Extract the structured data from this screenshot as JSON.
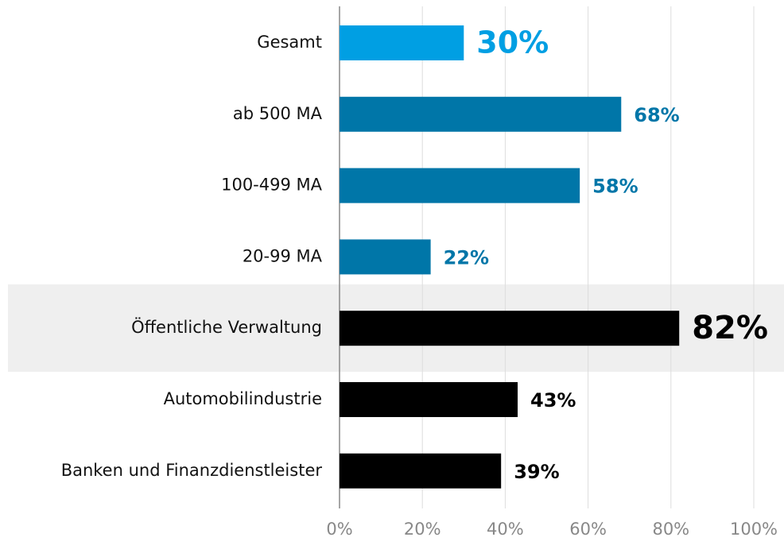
{
  "chart_data": {
    "type": "hbar",
    "categories": [
      "Gesamt",
      "ab 500 MA",
      "100-499 MA",
      "20-99 MA",
      "Öffentliche Verwaltung",
      "Automobilindustrie",
      "Banken und Finanzdienstleister"
    ],
    "values": [
      30,
      68,
      58,
      22,
      82,
      43,
      39
    ],
    "value_labels": [
      "30%",
      "68%",
      "58%",
      "22%",
      "82%",
      "43%",
      "39%"
    ],
    "colors": [
      "#009fe3",
      "#0076a8",
      "#0076a8",
      "#0076a8",
      "#000000",
      "#000000",
      "#000000"
    ],
    "xlim": [
      0,
      100
    ],
    "xticks": [
      {
        "value": 0,
        "label": "0%"
      },
      {
        "value": 20,
        "label": "20%"
      },
      {
        "value": 40,
        "label": "40%"
      },
      {
        "value": 60,
        "label": "60%"
      },
      {
        "value": 80,
        "label": "80%"
      },
      {
        "value": 100,
        "label": "100%"
      }
    ],
    "grid": true
  }
}
